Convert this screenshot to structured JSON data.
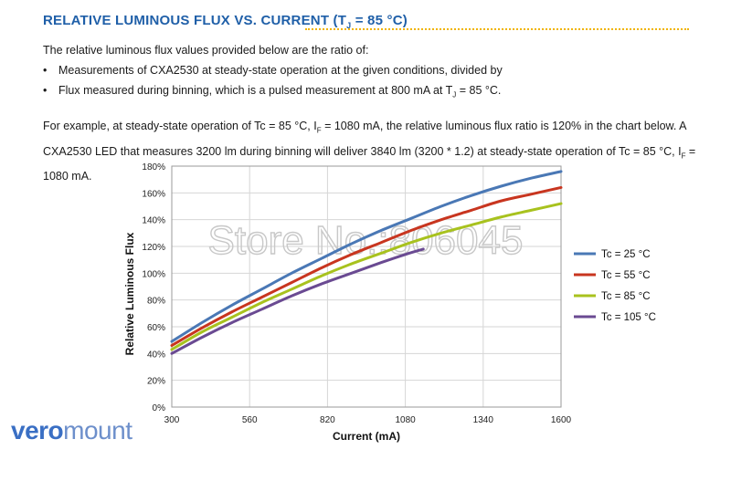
{
  "heading": {
    "prefix": "RELATIVE LUMINOUS FLUX VS. CURRENT (T",
    "sub": "J",
    "suffix": " = 85 °C)"
  },
  "intro": "The relative luminous flux values provided below are the ratio of:",
  "bullets": [
    {
      "text": "Measurements of CXA2530 at steady-state operation at the given conditions, divided by"
    },
    {
      "before": "Flux measured during binning, which is a pulsed measurement at 800 mA at T",
      "sub": "J",
      "after": " = 85 °C."
    }
  ],
  "paragraph": {
    "p1": "For example, at steady-state operation of Tc = 85 °C, I",
    "sub1": "F",
    "p2": " = 1080 mA, the relative luminous flux ratio is 120% in the chart below. A CXA2530 LED that measures 3200 lm during binning will deliver 3840 lm (3200 * 1.2) at steady-state operation of Tc = 85 °C, I",
    "sub2": "F",
    "p3": " = 1080 mA."
  },
  "watermark": "Store No.:806045",
  "brand": {
    "part1": "vero",
    "part2": "mount"
  },
  "chart_data": {
    "type": "line",
    "xlabel": "Current (mA)",
    "ylabel": "Relative Luminous Flux",
    "xlim": [
      300,
      1600
    ],
    "ylim": [
      0,
      180
    ],
    "xticks": [
      300,
      560,
      820,
      1080,
      1340,
      1600
    ],
    "yticks": [
      0,
      20,
      40,
      60,
      80,
      100,
      120,
      140,
      160,
      180
    ],
    "ytick_suffix": "%",
    "grid": true,
    "legend_position": "right",
    "series": [
      {
        "name": "Tc = 25 °C",
        "color": "#4a78b5",
        "x": [
          300,
          400,
          500,
          600,
          700,
          800,
          900,
          1000,
          1100,
          1200,
          1300,
          1400,
          1500,
          1600
        ],
        "y": [
          49,
          63,
          76,
          88,
          100,
          111,
          122,
          132,
          141,
          150,
          158,
          165,
          171,
          176
        ]
      },
      {
        "name": "Tc = 55 °C",
        "color": "#c8351f",
        "x": [
          300,
          400,
          500,
          600,
          700,
          800,
          900,
          1000,
          1100,
          1200,
          1300,
          1400,
          1500,
          1600
        ],
        "y": [
          46,
          59,
          71,
          82,
          93,
          104,
          114,
          123,
          132,
          140,
          147,
          154,
          159,
          164
        ]
      },
      {
        "name": "Tc = 85 °C",
        "color": "#a8c21e",
        "x": [
          300,
          400,
          500,
          600,
          700,
          800,
          900,
          1000,
          1100,
          1200,
          1300,
          1400,
          1500,
          1600
        ],
        "y": [
          43,
          56,
          67,
          78,
          88,
          98,
          107,
          115,
          123,
          130,
          136,
          142,
          147,
          152
        ]
      },
      {
        "name": "Tc = 105 °C",
        "color": "#6a4a92",
        "x": [
          300,
          400,
          500,
          600,
          700,
          800,
          900,
          1000,
          1080,
          1140
        ],
        "y": [
          40,
          52,
          63,
          73,
          83,
          92,
          100,
          108,
          114,
          118
        ]
      }
    ]
  }
}
